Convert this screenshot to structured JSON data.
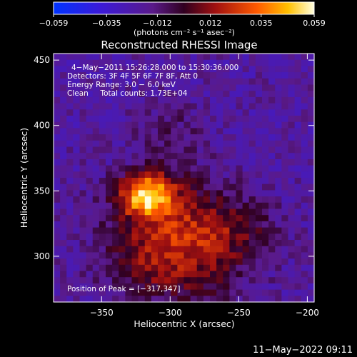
{
  "chart_data": {
    "type": "heatmap",
    "title": "Reconstructed RHESSI Image",
    "xlabel": "Heliocentric X (arcsec)",
    "ylabel": "Heliocentric Y (arcsec)",
    "xlim": [
      -385,
      -195
    ],
    "ylim": [
      265,
      455
    ],
    "x_ticks": [
      -350,
      -300,
      -250,
      -200
    ],
    "x_tick_labels": [
      "−350",
      "−300",
      "−250",
      "−200"
    ],
    "y_ticks": [
      300,
      350,
      400,
      450
    ],
    "y_tick_labels": [
      "300",
      "350",
      "400",
      "450"
    ],
    "colorbar": {
      "min": -0.059,
      "max": 0.059,
      "ticks": [
        -0.059,
        -0.035,
        -0.012,
        0.012,
        0.035,
        0.059
      ],
      "tick_labels": [
        "−0.059",
        "−0.035",
        "−0.012",
        "0.012",
        "0.035",
        "0.059"
      ],
      "units_label": "(photons cm⁻² s⁻¹ asec⁻²)"
    },
    "annotations": [
      "4−May−2011 15:26:28.000 to 15:30:36.000",
      "Detectors: 3F 4F 5F 6F 7F 8F, Att 0",
      "Energy Range: 3.0 − 6.0 keV",
      "Clean     Total counts: 1.73E+04"
    ],
    "peak_label": "Position of Peak = [−317,347]",
    "peak": [
      -317,
      347
    ],
    "sources": [
      {
        "x": -317,
        "y": 347,
        "sx": 13,
        "sy": 11,
        "amp": 0.06
      },
      {
        "x": -305,
        "y": 325,
        "sx": 30,
        "sy": 26,
        "amp": 0.026
      },
      {
        "x": -280,
        "y": 300,
        "sx": 26,
        "sy": 30,
        "amp": 0.02
      },
      {
        "x": -250,
        "y": 320,
        "sx": 22,
        "sy": 18,
        "amp": 0.014
      },
      {
        "x": -300,
        "y": 395,
        "sx": 18,
        "sy": 20,
        "amp": 0.01
      },
      {
        "x": -320,
        "y": 290,
        "sx": 22,
        "sy": 16,
        "amp": 0.014
      }
    ],
    "background": -0.02,
    "colormap": "idl-hot-blue-purple"
  },
  "footer_timestamp": "11−May−2022 09:11"
}
